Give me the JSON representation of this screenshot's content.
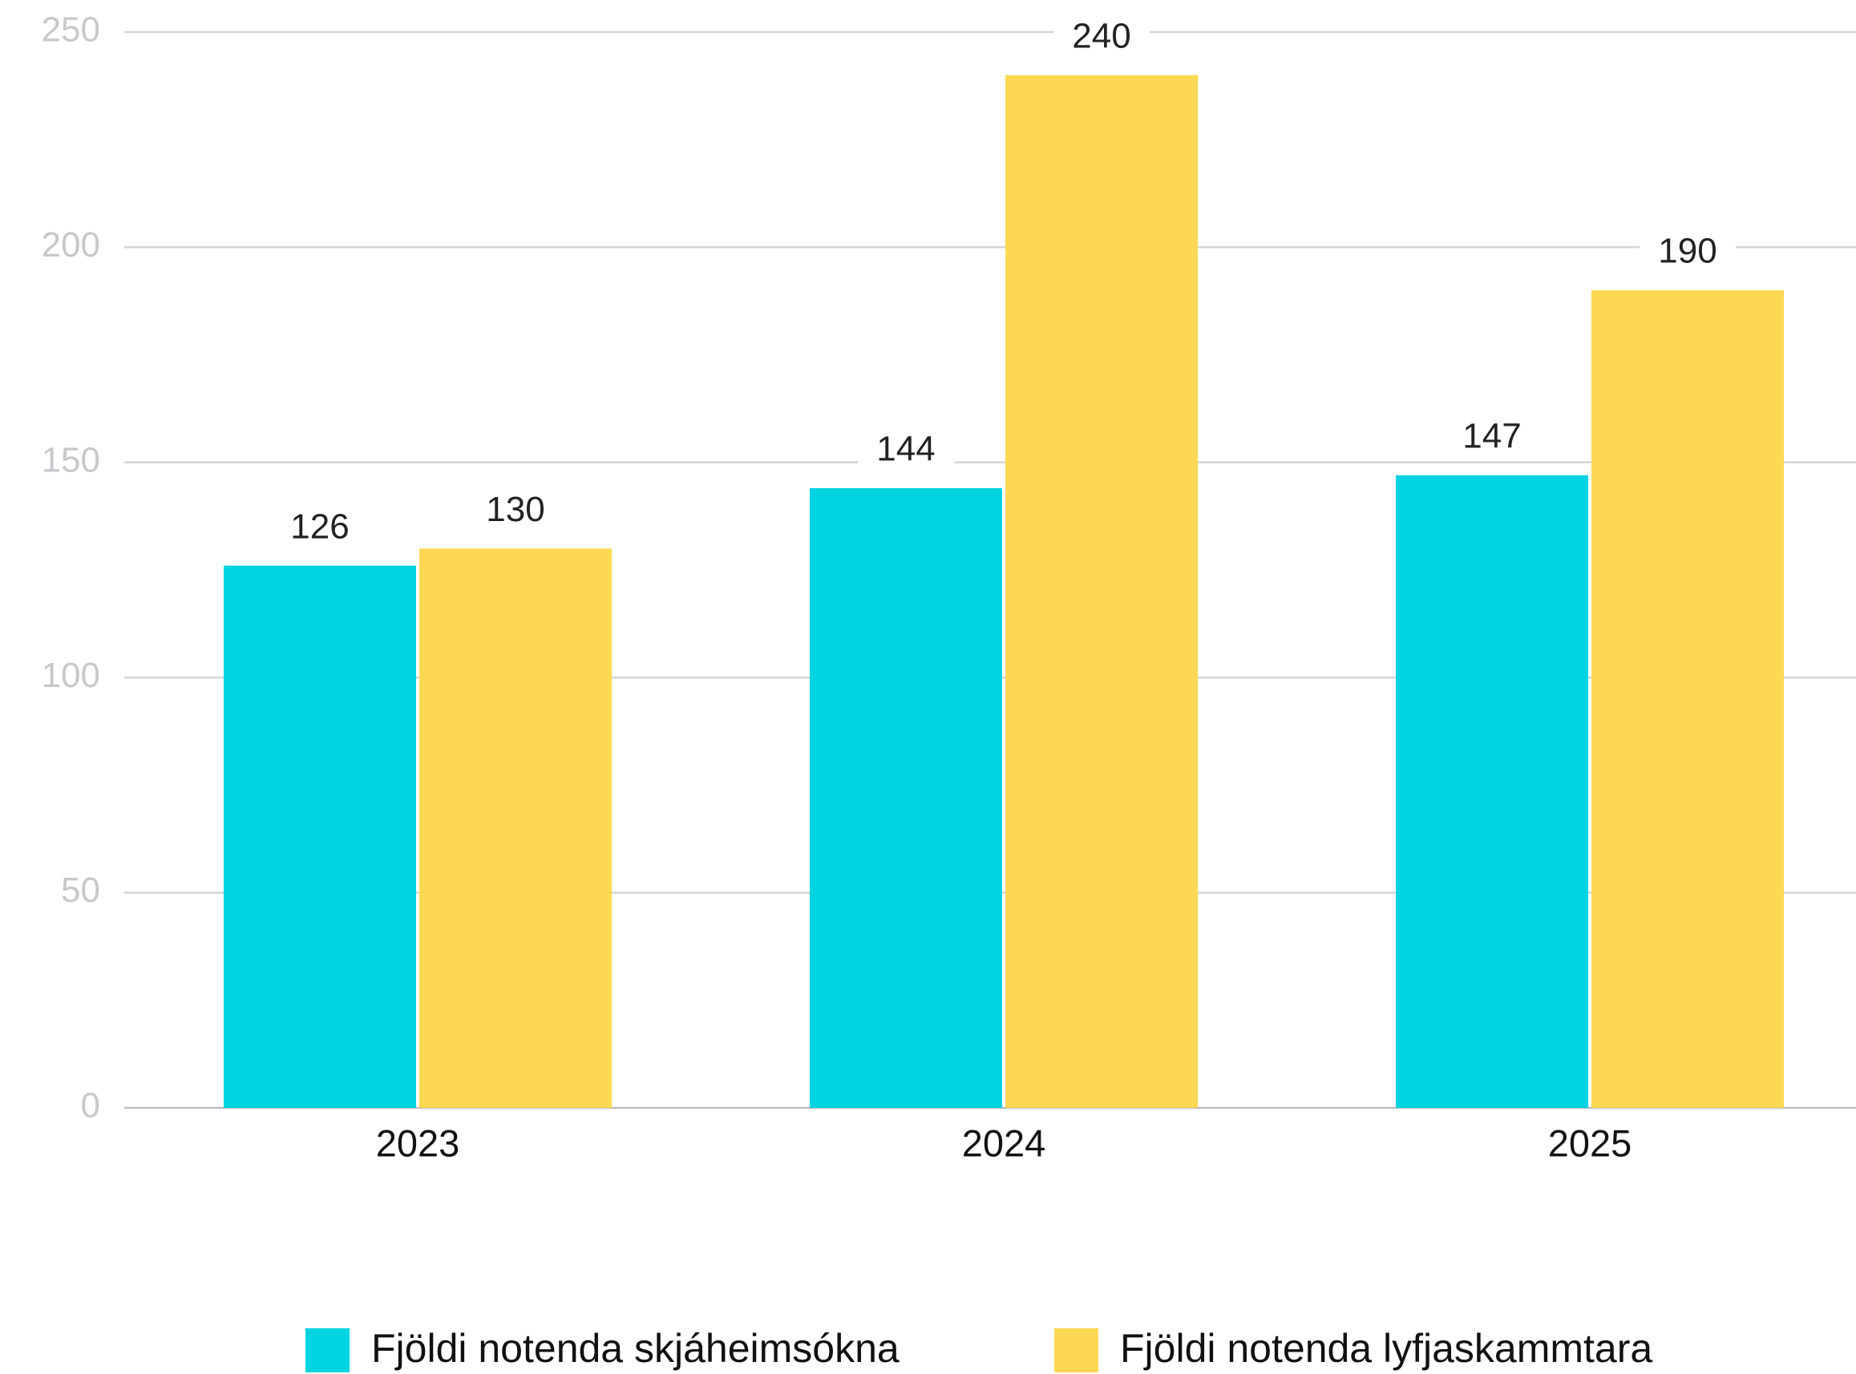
{
  "chart_data": {
    "type": "bar",
    "categories": [
      "2023",
      "2024",
      "2025"
    ],
    "series": [
      {
        "name": "Fjöldi notenda skjáheimsókna",
        "color": "#00d4e0",
        "values": [
          126,
          144,
          147
        ]
      },
      {
        "name": "Fjöldi notenda lyfjaskammtara",
        "color": "#fdd853",
        "values": [
          130,
          240,
          190
        ]
      }
    ],
    "ylim": [
      0,
      250
    ],
    "yticks": [
      0,
      50,
      100,
      150,
      200,
      250
    ],
    "grid": true,
    "legend": "bottom"
  }
}
